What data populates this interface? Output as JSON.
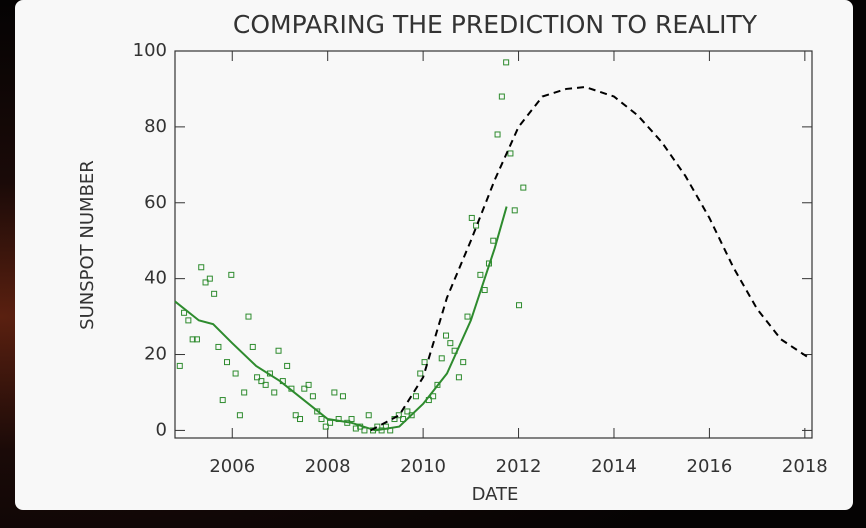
{
  "chart_data": {
    "type": "line",
    "title": "COMPARING THE PREDICTION TO REALITY",
    "x_label": "DATE",
    "y_label": "SUNSPOT NUMBER",
    "xlim": [
      2004.8,
      2018.15
    ],
    "ylim": [
      -2,
      100
    ],
    "xticks": [
      2006,
      2008,
      2010,
      2012,
      2014,
      2016,
      2018
    ],
    "yticks": [
      0,
      20,
      40,
      60,
      80,
      100
    ],
    "series": [
      {
        "kind": "scatter",
        "color": "#2e8b2e",
        "x": [
          2004.9,
          2004.99,
          2005.08,
          2005.17,
          2005.26,
          2005.35,
          2005.44,
          2005.53,
          2005.62,
          2005.71,
          2005.8,
          2005.89,
          2005.98,
          2006.07,
          2006.16,
          2006.25,
          2006.34,
          2006.43,
          2006.52,
          2006.61,
          2006.7,
          2006.79,
          2006.88,
          2006.97,
          2007.06,
          2007.15,
          2007.24,
          2007.33,
          2007.42,
          2007.51,
          2007.6,
          2007.69,
          2007.78,
          2007.87,
          2007.96,
          2008.05,
          2008.14,
          2008.23,
          2008.32,
          2008.41,
          2008.5,
          2008.59,
          2008.68,
          2008.77,
          2008.86,
          2008.95,
          2009.04,
          2009.13,
          2009.22,
          2009.31,
          2009.4,
          2009.49,
          2009.58,
          2009.67,
          2009.76,
          2009.85,
          2009.94,
          2010.03,
          2010.12,
          2010.21,
          2010.3,
          2010.39,
          2010.48,
          2010.57,
          2010.66,
          2010.75,
          2010.84,
          2010.93,
          2011.02,
          2011.11,
          2011.2,
          2011.29,
          2011.38,
          2011.47,
          2011.56,
          2011.65,
          2011.74,
          2011.83,
          2011.92,
          2012.01,
          2012.1
        ],
        "values": [
          17,
          31,
          29,
          24,
          24,
          43,
          39,
          40,
          36,
          22,
          8,
          18,
          41,
          15,
          4,
          10,
          30,
          22,
          14,
          13,
          12,
          15,
          10,
          21,
          13,
          17,
          11,
          4,
          3,
          11,
          12,
          9,
          5,
          3,
          1,
          2,
          10,
          3,
          9,
          2,
          3,
          0.5,
          1,
          0,
          4,
          0,
          1,
          0,
          1,
          0,
          3,
          4,
          3,
          5,
          4,
          9,
          15,
          18,
          8,
          9,
          12,
          19,
          25,
          23,
          21,
          14,
          18,
          30,
          56,
          54,
          41,
          37,
          44,
          50,
          78,
          88,
          97,
          73,
          58,
          33,
          64
        ]
      },
      {
        "kind": "line",
        "color": "#2e8b2e",
        "x": [
          2004.8,
          2005.3,
          2005.6,
          2006,
          2006.5,
          2007,
          2007.5,
          2008,
          2008.5,
          2009,
          2009.5,
          2010,
          2010.5,
          2011,
          2011.5,
          2011.75
        ],
        "values": [
          34,
          29,
          28,
          23,
          17,
          13,
          8,
          3,
          2,
          0,
          1,
          7,
          15,
          29,
          48,
          59
        ]
      },
      {
        "kind": "dashed",
        "color": "#000000",
        "x": [
          2008.9,
          2009.5,
          2010,
          2010.5,
          2011,
          2011.5,
          2012,
          2012.5,
          2013,
          2013.4,
          2014,
          2014.5,
          2015,
          2015.5,
          2016,
          2016.5,
          2017,
          2017.5,
          2018.1
        ],
        "values": [
          0,
          4,
          14,
          35,
          50,
          66,
          80,
          88,
          90,
          90.5,
          88,
          83,
          76,
          67,
          56,
          43,
          32,
          24,
          19
        ]
      }
    ]
  }
}
